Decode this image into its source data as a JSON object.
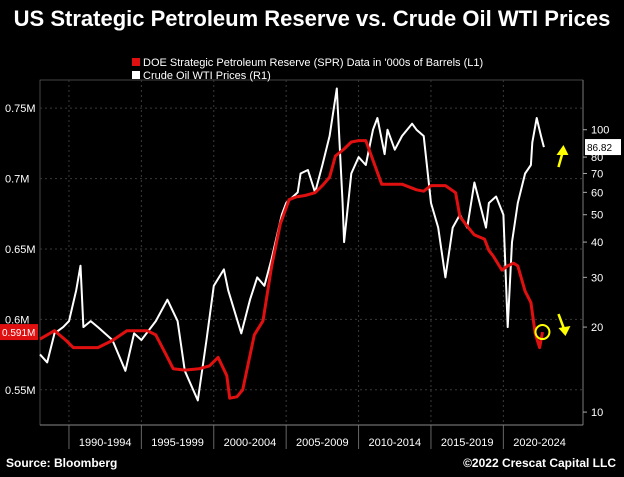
{
  "title": "US Strategic Petroleum Reserve vs. Crude Oil WTI Prices",
  "footer": {
    "source": "Source: Bloomberg",
    "copyright": "©2022 Crescat Capital LLC"
  },
  "colors": {
    "spr": "#e01010",
    "wti": "#ffffff",
    "background": "#000000",
    "grid": "#3a3a3a",
    "accent": "#ffff00"
  },
  "chart_data": {
    "type": "line",
    "title": "US Strategic Petroleum Reserve vs. Crude Oil WTI Prices",
    "legend_position": "top-center",
    "grid": true,
    "x_range": [
      1988,
      2025.5
    ],
    "x_tick_labels": [
      "1990-1994",
      "1995-1999",
      "2000-2004",
      "2005-2009",
      "2010-2014",
      "2015-2019",
      "2020-2024"
    ],
    "left_axis": {
      "range": [
        0.525,
        0.77
      ],
      "ticks": [
        0.55,
        0.6,
        0.65,
        0.7,
        0.75
      ],
      "tick_labels": [
        "0.55M",
        "0.6M",
        "0.65M",
        "0.7M",
        "0.75M"
      ],
      "last_value_label": "0.591M",
      "last_value": 0.591
    },
    "right_axis": {
      "scale": "log",
      "range": [
        9,
        150
      ],
      "ticks": [
        10,
        20,
        30,
        40,
        50,
        60,
        70,
        80,
        100
      ],
      "tick_labels": [
        "10",
        "20",
        "30",
        "40",
        "50",
        "60",
        "70",
        "80",
        "100"
      ],
      "last_value_label": "86.82",
      "last_value": 86.82
    },
    "series": [
      {
        "name": "DOE Strategic Petroleum Reserve (SPR) Data in '000s of Barrels (L1)",
        "axis": "left",
        "x": [
          1988,
          1989,
          1989.8,
          1990.3,
          1991,
          1992,
          1993,
          1994,
          1994.6,
          1995.4,
          1996,
          1996.7,
          1997.2,
          1998,
          1999,
          1999.7,
          2000.3,
          2000.9,
          2001.1,
          2001.6,
          2002,
          2002.8,
          2003.4,
          2004,
          2004.6,
          2005.2,
          2005.7,
          2006.3,
          2007,
          2007.5,
          2008,
          2008.4,
          2009,
          2009.5,
          2010,
          2010.5,
          2011,
          2011.6,
          2012,
          2013,
          2014,
          2014.5,
          2015,
          2015.7,
          2016,
          2016.7,
          2017,
          2017.6,
          2018,
          2018.7,
          2019,
          2019.3,
          2019.9,
          2020.3,
          2020.7,
          2021,
          2021.5,
          2021.9,
          2022.2,
          2022.5,
          2022.7
        ],
        "values": [
          0.586,
          0.592,
          0.585,
          0.58,
          0.58,
          0.58,
          0.585,
          0.592,
          0.592,
          0.592,
          0.589,
          0.575,
          0.565,
          0.564,
          0.565,
          0.567,
          0.573,
          0.56,
          0.544,
          0.545,
          0.55,
          0.589,
          0.599,
          0.638,
          0.668,
          0.685,
          0.687,
          0.688,
          0.69,
          0.695,
          0.701,
          0.716,
          0.721,
          0.726,
          0.727,
          0.727,
          0.713,
          0.696,
          0.696,
          0.696,
          0.692,
          0.691,
          0.695,
          0.695,
          0.695,
          0.69,
          0.673,
          0.665,
          0.66,
          0.657,
          0.649,
          0.645,
          0.635,
          0.638,
          0.64,
          0.638,
          0.62,
          0.612,
          0.59,
          0.58,
          0.591
        ]
      },
      {
        "name": "Crude Oil WTI Prices (R1)",
        "axis": "right",
        "x": [
          1988,
          1988.5,
          1989,
          1989.6,
          1990,
          1990.5,
          1990.8,
          1991,
          1991.5,
          1992,
          1993,
          1993.9,
          1994.5,
          1995,
          1996,
          1996.8,
          1997.5,
          1998,
          1998.9,
          1999.5,
          2000,
          2000.7,
          2001,
          2001.9,
          2002.5,
          2003,
          2003.5,
          2004,
          2004.7,
          2005,
          2005.8,
          2006,
          2006.5,
          2007,
          2007.5,
          2008,
          2008.5,
          2008.9,
          2009,
          2009.5,
          2010,
          2010.5,
          2011,
          2011.3,
          2011.8,
          2012,
          2012.5,
          2013,
          2013.7,
          2014,
          2014.5,
          2015,
          2015.5,
          2016,
          2016.5,
          2017,
          2017.5,
          2018,
          2018.8,
          2019,
          2019.5,
          2020,
          2020.3,
          2020.6,
          2021,
          2021.5,
          2021.9,
          2022,
          2022.3,
          2022.6,
          2022.8
        ],
        "values": [
          16,
          15,
          19,
          20,
          21,
          27,
          33,
          20,
          21,
          20,
          18,
          14,
          19,
          18,
          21,
          25,
          21,
          14,
          11,
          18,
          28,
          32,
          27,
          19,
          25,
          30,
          28,
          35,
          50,
          55,
          60,
          70,
          72,
          60,
          75,
          95,
          140,
          55,
          40,
          70,
          80,
          75,
          100,
          110,
          82,
          100,
          85,
          95,
          105,
          100,
          95,
          55,
          45,
          30,
          45,
          50,
          45,
          65,
          45,
          55,
          58,
          50,
          20,
          40,
          55,
          70,
          75,
          90,
          110,
          95,
          86.82
        ]
      }
    ],
    "annotations": [
      "86.82",
      "0.591M"
    ]
  }
}
